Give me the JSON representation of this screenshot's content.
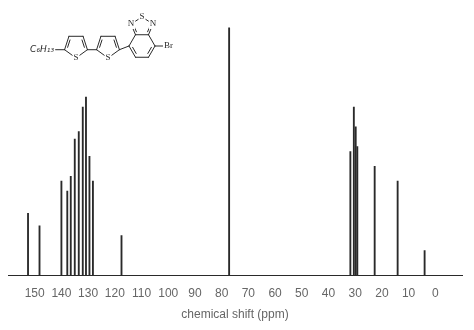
{
  "chart_data": {
    "type": "bar",
    "x": [
      152.5,
      148.2,
      140.0,
      137.8,
      136.5,
      135.0,
      133.5,
      132.0,
      130.8,
      129.5,
      128.2,
      117.5,
      77.2,
      31.8,
      30.5,
      29.8,
      29.2,
      22.7,
      14.1,
      4.0
    ],
    "values": [
      0.25,
      0.2,
      0.38,
      0.34,
      0.4,
      0.55,
      0.58,
      0.68,
      0.72,
      0.48,
      0.38,
      0.16,
      1.0,
      0.5,
      0.68,
      0.6,
      0.52,
      0.44,
      0.38,
      0.1
    ],
    "color": "#2a2a2a",
    "xlabel": "chemical shift (ppm)",
    "xlim": [
      160,
      -10
    ],
    "ylim": [
      0,
      1.08
    ],
    "xticks": [
      150,
      140,
      130,
      120,
      110,
      100,
      90,
      80,
      70,
      60,
      50,
      40,
      30,
      20,
      10,
      0
    ],
    "tick_labels": "x",
    "grid": false,
    "annotations": [
      "C₆H₁₃",
      "S",
      "S",
      "N",
      "N",
      "S",
      "Br"
    ]
  }
}
